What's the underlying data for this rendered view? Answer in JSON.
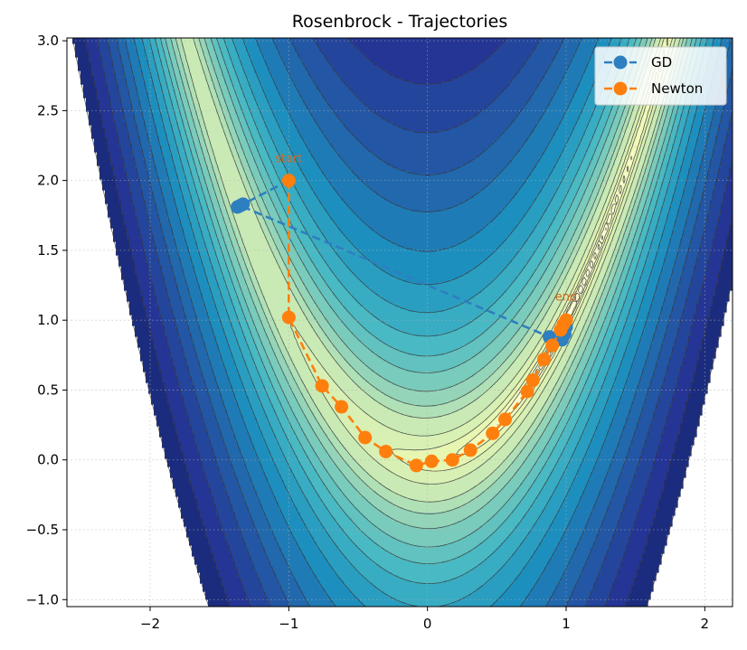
{
  "chart_data": {
    "type": "line",
    "title": "Rosenbrock - Trajectories",
    "xlabel": "",
    "ylabel": "",
    "xlim": [
      -2.6,
      2.2
    ],
    "ylim": [
      -1.05,
      3.02
    ],
    "xticks": [
      -2,
      -1,
      0,
      1,
      2
    ],
    "yticks": [
      -1.0,
      -0.5,
      0.0,
      0.5,
      1.0,
      1.5,
      2.0,
      2.5,
      3.0
    ],
    "xtick_labels": [
      "−2",
      "−1",
      "0",
      "1",
      "2"
    ],
    "ytick_labels": [
      "−1.0",
      "−0.5",
      "0.0",
      "0.5",
      "1.0",
      "1.5",
      "2.0",
      "2.5",
      "3.0"
    ],
    "grid": true,
    "legend_position": "top-right",
    "background_contours": {
      "function": "rosenbrock",
      "colormap": "YlGnBu",
      "levels_log10": [
        -1.0,
        -0.6,
        -0.2,
        0.2,
        0.6,
        1.0,
        1.2,
        1.4,
        1.6,
        1.75,
        1.9,
        2.05,
        2.2,
        2.35,
        2.5,
        2.62,
        2.74,
        2.86,
        2.98,
        3.1
      ],
      "line_color": "#3a3a3a"
    },
    "series": [
      {
        "name": "GD",
        "color": "#2e7fc0",
        "marker": "circle",
        "linestyle": "dashed",
        "x": [
          -1.0,
          -1.33,
          -1.37,
          -1.35,
          0.88,
          0.97,
          0.99,
          1.0
        ],
        "y": [
          2.0,
          1.83,
          1.81,
          1.82,
          0.88,
          0.86,
          0.9,
          0.95
        ]
      },
      {
        "name": "Newton",
        "color": "#ff7f0e",
        "marker": "circle",
        "linestyle": "dashed",
        "x": [
          -1.0,
          -1.0,
          -0.76,
          -0.62,
          -0.45,
          -0.3,
          -0.08,
          0.03,
          0.18,
          0.31,
          0.47,
          0.56,
          0.72,
          0.76,
          0.84,
          0.9,
          0.96,
          0.98,
          1.0,
          1.0
        ],
        "y": [
          2.0,
          1.02,
          0.53,
          0.38,
          0.16,
          0.06,
          -0.04,
          -0.01,
          0.0,
          0.07,
          0.19,
          0.29,
          0.49,
          0.57,
          0.72,
          0.82,
          0.93,
          0.97,
          1.0,
          1.0
        ]
      }
    ],
    "annotations": [
      {
        "text": "start",
        "x": -1.0,
        "y": 2.13,
        "color": "#d2691e"
      },
      {
        "text": "end",
        "x": 1.0,
        "y": 1.14,
        "color": "#d2691e"
      }
    ]
  }
}
